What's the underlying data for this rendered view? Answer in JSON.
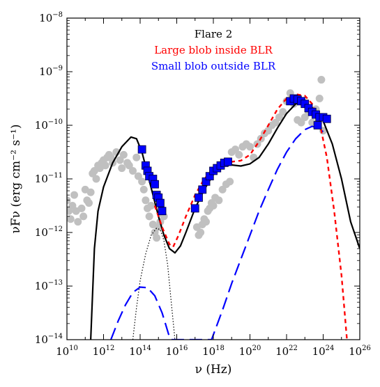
{
  "chart_data": {
    "type": "scatter",
    "title": "",
    "xlabel": "ν (Hz)",
    "ylabel": "νFν (erg cm⁻² s⁻¹)",
    "xscale": "log",
    "yscale": "log",
    "xlim_log10": [
      10,
      26
    ],
    "ylim_log10": [
      -14,
      -8
    ],
    "x_ticks": [
      {
        "base": "10",
        "exp": "10",
        "v": 10
      },
      {
        "base": "10",
        "exp": "12",
        "v": 12
      },
      {
        "base": "10",
        "exp": "14",
        "v": 14
      },
      {
        "base": "10",
        "exp": "16",
        "v": 16
      },
      {
        "base": "10",
        "exp": "18",
        "v": 18
      },
      {
        "base": "10",
        "exp": "20",
        "v": 20
      },
      {
        "base": "10",
        "exp": "22",
        "v": 22
      },
      {
        "base": "10",
        "exp": "24",
        "v": 24
      },
      {
        "base": "10",
        "exp": "26",
        "v": 26
      }
    ],
    "y_ticks": [
      {
        "base": "10",
        "exp": "−14",
        "v": -14
      },
      {
        "base": "10",
        "exp": "−13",
        "v": -13
      },
      {
        "base": "10",
        "exp": "−12",
        "v": -12
      },
      {
        "base": "10",
        "exp": "−11",
        "v": -11
      },
      {
        "base": "10",
        "exp": "−10",
        "v": -10
      },
      {
        "base": "10",
        "exp": "−9",
        "v": -9
      },
      {
        "base": "10",
        "exp": "−8",
        "v": -8
      }
    ],
    "legend": {
      "placement": "top-center",
      "entries": [
        {
          "text": "Flare 2",
          "color": "#000000"
        },
        {
          "text": "Large blob inside BLR",
          "color": "#ff0000"
        },
        {
          "text": "Small blob outside BLR",
          "color": "#0000ff"
        }
      ]
    },
    "series": [
      {
        "style": "total-model-solid-black",
        "color": "#000000",
        "points_log10": [
          [
            11.3,
            -14.0
          ],
          [
            11.5,
            -12.3
          ],
          [
            11.7,
            -11.6
          ],
          [
            12.0,
            -11.15
          ],
          [
            12.5,
            -10.7
          ],
          [
            13.0,
            -10.4
          ],
          [
            13.5,
            -10.22
          ],
          [
            13.8,
            -10.25
          ],
          [
            14.1,
            -10.5
          ],
          [
            14.4,
            -10.9
          ],
          [
            14.7,
            -11.3
          ],
          [
            15.0,
            -11.7
          ],
          [
            15.3,
            -12.05
          ],
          [
            15.6,
            -12.3
          ],
          [
            15.9,
            -12.38
          ],
          [
            16.2,
            -12.25
          ],
          [
            16.5,
            -12.0
          ],
          [
            17.0,
            -11.55
          ],
          [
            17.5,
            -11.2
          ],
          [
            18.0,
            -10.92
          ],
          [
            18.5,
            -10.76
          ],
          [
            19.0,
            -10.74
          ],
          [
            19.5,
            -10.76
          ],
          [
            20.0,
            -10.72
          ],
          [
            20.5,
            -10.6
          ],
          [
            21.0,
            -10.35
          ],
          [
            21.5,
            -10.05
          ],
          [
            22.0,
            -9.78
          ],
          [
            22.5,
            -9.6
          ],
          [
            23.0,
            -9.57
          ],
          [
            23.5,
            -9.7
          ],
          [
            24.0,
            -9.92
          ],
          [
            24.5,
            -10.35
          ],
          [
            25.0,
            -11.0
          ],
          [
            25.5,
            -11.8
          ],
          [
            26.0,
            -12.3
          ]
        ]
      },
      {
        "style": "large-blob-red-dashed",
        "color": "#ff0000",
        "points_log10": [
          [
            14.8,
            -11.5
          ],
          [
            15.2,
            -11.9
          ],
          [
            15.6,
            -12.22
          ],
          [
            15.8,
            -12.27
          ],
          [
            16.1,
            -12.05
          ],
          [
            16.5,
            -11.7
          ],
          [
            17.0,
            -11.3
          ],
          [
            17.5,
            -11.0
          ],
          [
            18.0,
            -10.82
          ],
          [
            18.5,
            -10.72
          ],
          [
            19.0,
            -10.68
          ],
          [
            19.5,
            -10.66
          ],
          [
            20.0,
            -10.55
          ],
          [
            20.5,
            -10.3
          ],
          [
            21.0,
            -10.0
          ],
          [
            21.5,
            -9.7
          ],
          [
            22.0,
            -9.5
          ],
          [
            22.5,
            -9.42
          ],
          [
            23.0,
            -9.45
          ],
          [
            23.4,
            -9.6
          ],
          [
            23.8,
            -9.95
          ],
          [
            24.2,
            -10.6
          ],
          [
            24.6,
            -11.6
          ],
          [
            25.0,
            -12.8
          ],
          [
            25.3,
            -14.0
          ]
        ]
      },
      {
        "style": "small-blob-blue-long-dashed",
        "color": "#0000ff",
        "points_log10": [
          [
            12.4,
            -14.0
          ],
          [
            12.8,
            -13.65
          ],
          [
            13.2,
            -13.35
          ],
          [
            13.6,
            -13.12
          ],
          [
            14.0,
            -13.02
          ],
          [
            14.4,
            -13.03
          ],
          [
            14.8,
            -13.18
          ],
          [
            15.2,
            -13.5
          ],
          [
            15.6,
            -13.95
          ],
          [
            15.7,
            -14.0
          ],
          [
            17.9,
            -14.0
          ],
          [
            18.5,
            -13.45
          ],
          [
            19.0,
            -12.95
          ],
          [
            19.5,
            -12.5
          ],
          [
            20.0,
            -12.05
          ],
          [
            20.5,
            -11.6
          ],
          [
            21.0,
            -11.2
          ],
          [
            21.5,
            -10.82
          ],
          [
            22.0,
            -10.5
          ],
          [
            22.5,
            -10.25
          ],
          [
            23.0,
            -10.08
          ],
          [
            23.4,
            -10.02
          ],
          [
            23.7,
            -10.05
          ],
          [
            24.0,
            -10.12
          ]
        ]
      },
      {
        "style": "disk-dotted-black",
        "color": "#000000",
        "points_log10": [
          [
            13.6,
            -14.0
          ],
          [
            13.8,
            -13.4
          ],
          [
            14.0,
            -12.9
          ],
          [
            14.3,
            -12.4
          ],
          [
            14.6,
            -12.05
          ],
          [
            14.9,
            -11.92
          ],
          [
            15.1,
            -11.95
          ],
          [
            15.3,
            -12.15
          ],
          [
            15.5,
            -12.6
          ],
          [
            15.7,
            -13.3
          ],
          [
            15.9,
            -14.0
          ]
        ]
      },
      {
        "style": "observed-flare-blue-squares",
        "color": "#0000ff",
        "points_log10": [
          [
            14.1,
            -10.45
          ],
          [
            14.3,
            -10.75
          ],
          [
            14.4,
            -10.85
          ],
          [
            14.5,
            -10.95
          ],
          [
            14.7,
            -11.0
          ],
          [
            14.8,
            -11.1
          ],
          [
            14.9,
            -11.3
          ],
          [
            15.0,
            -11.35
          ],
          [
            15.1,
            -11.45
          ],
          [
            15.2,
            -11.6
          ],
          [
            17.0,
            -11.55
          ],
          [
            17.2,
            -11.35
          ],
          [
            17.4,
            -11.2
          ],
          [
            17.6,
            -11.05
          ],
          [
            17.8,
            -10.95
          ],
          [
            18.0,
            -10.85
          ],
          [
            18.2,
            -10.8
          ],
          [
            18.4,
            -10.75
          ],
          [
            18.6,
            -10.7
          ],
          [
            18.8,
            -10.68
          ],
          [
            22.2,
            -9.55
          ],
          [
            22.4,
            -9.5
          ],
          [
            22.6,
            -9.52
          ],
          [
            22.8,
            -9.55
          ],
          [
            23.0,
            -9.6
          ],
          [
            23.2,
            -9.68
          ],
          [
            23.4,
            -9.75
          ],
          [
            23.6,
            -9.8
          ],
          [
            23.8,
            -9.85
          ],
          [
            24.0,
            -9.85
          ],
          [
            24.2,
            -9.88
          ],
          [
            23.7,
            -10.0
          ]
        ]
      },
      {
        "style": "archival-grey-circles",
        "color": "#c0c0c0",
        "points_log10": [
          [
            10.0,
            -11.4
          ],
          [
            10.1,
            -11.6
          ],
          [
            10.2,
            -11.75
          ],
          [
            10.3,
            -11.5
          ],
          [
            10.4,
            -11.3
          ],
          [
            10.5,
            -11.6
          ],
          [
            10.6,
            -11.8
          ],
          [
            10.8,
            -11.55
          ],
          [
            10.9,
            -11.7
          ],
          [
            11.0,
            -11.2
          ],
          [
            11.1,
            -11.4
          ],
          [
            11.2,
            -11.45
          ],
          [
            11.3,
            -11.25
          ],
          [
            11.4,
            -10.9
          ],
          [
            11.5,
            -10.85
          ],
          [
            11.6,
            -11.0
          ],
          [
            11.7,
            -10.75
          ],
          [
            11.8,
            -10.8
          ],
          [
            11.9,
            -10.7
          ],
          [
            12.0,
            -10.65
          ],
          [
            12.1,
            -10.75
          ],
          [
            12.2,
            -10.6
          ],
          [
            12.3,
            -10.55
          ],
          [
            12.4,
            -10.6
          ],
          [
            12.5,
            -10.7
          ],
          [
            12.7,
            -10.5
          ],
          [
            12.9,
            -10.65
          ],
          [
            13.0,
            -10.8
          ],
          [
            13.1,
            -10.55
          ],
          [
            13.3,
            -10.7
          ],
          [
            13.4,
            -10.75
          ],
          [
            13.6,
            -10.85
          ],
          [
            13.8,
            -10.6
          ],
          [
            13.9,
            -10.95
          ],
          [
            14.1,
            -11.05
          ],
          [
            14.2,
            -11.2
          ],
          [
            14.3,
            -11.4
          ],
          [
            14.4,
            -11.55
          ],
          [
            14.5,
            -11.7
          ],
          [
            14.6,
            -11.5
          ],
          [
            14.7,
            -11.85
          ],
          [
            14.8,
            -12.0
          ],
          [
            14.9,
            -12.1
          ],
          [
            15.0,
            -11.9
          ],
          [
            15.1,
            -11.8
          ],
          [
            15.2,
            -11.65
          ],
          [
            15.3,
            -11.7
          ],
          [
            17.1,
            -11.9
          ],
          [
            17.2,
            -12.05
          ],
          [
            17.3,
            -12.0
          ],
          [
            17.4,
            -11.85
          ],
          [
            17.5,
            -11.75
          ],
          [
            17.6,
            -11.8
          ],
          [
            17.7,
            -11.6
          ],
          [
            17.8,
            -11.55
          ],
          [
            17.9,
            -11.45
          ],
          [
            18.0,
            -11.5
          ],
          [
            18.1,
            -11.35
          ],
          [
            18.3,
            -11.4
          ],
          [
            18.5,
            -11.2
          ],
          [
            18.7,
            -11.1
          ],
          [
            18.9,
            -11.05
          ],
          [
            19.0,
            -10.5
          ],
          [
            19.2,
            -10.45
          ],
          [
            19.4,
            -10.55
          ],
          [
            19.6,
            -10.4
          ],
          [
            19.8,
            -10.35
          ],
          [
            20.0,
            -10.4
          ],
          [
            20.2,
            -10.6
          ],
          [
            20.4,
            -10.35
          ],
          [
            20.6,
            -10.25
          ],
          [
            20.8,
            -10.15
          ],
          [
            21.0,
            -10.1
          ],
          [
            21.2,
            -10.0
          ],
          [
            21.4,
            -9.95
          ],
          [
            21.6,
            -9.85
          ],
          [
            21.8,
            -9.75
          ],
          [
            22.0,
            -9.55
          ],
          [
            22.2,
            -9.4
          ],
          [
            22.4,
            -9.6
          ],
          [
            22.6,
            -9.9
          ],
          [
            22.8,
            -9.95
          ],
          [
            23.0,
            -9.85
          ],
          [
            23.2,
            -9.75
          ],
          [
            23.4,
            -9.95
          ],
          [
            23.6,
            -9.7
          ],
          [
            23.8,
            -9.5
          ],
          [
            24.0,
            -10.1
          ],
          [
            23.9,
            -9.15
          ]
        ]
      }
    ]
  }
}
